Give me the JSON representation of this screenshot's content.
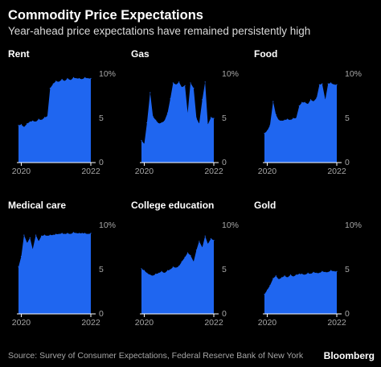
{
  "header": {
    "title": "Commodity Price Expectations",
    "subtitle": "Year-ahead price expectations have remained persistently high"
  },
  "footer": {
    "source": "Source: Survey of Consumer Expectations, Federal Reserve Bank of New York",
    "brand": "Bloomberg"
  },
  "colors": {
    "area": "#1f66f0",
    "background": "#000000",
    "text": "#ffffff",
    "muted": "#a6a6a6",
    "axis": "#ffffff"
  },
  "chart_data": [
    {
      "type": "area",
      "title": "Rent",
      "xlabel": "",
      "ylabel": "",
      "x_ticks": [
        "2020",
        "2022"
      ],
      "y_ticks": [
        "10%",
        "5",
        "0"
      ],
      "ylim": [
        0,
        10
      ],
      "xlim": [
        2019.92,
        2022
      ],
      "grid": false,
      "x": [
        2019.92,
        2020.0,
        2020.08,
        2020.17,
        2020.25,
        2020.33,
        2020.42,
        2020.5,
        2020.58,
        2020.67,
        2020.75,
        2020.83,
        2020.92,
        2021.0,
        2021.08,
        2021.17,
        2021.25,
        2021.33,
        2021.42,
        2021.5,
        2021.58,
        2021.67,
        2021.75,
        2021.83,
        2021.92,
        2022.0
      ],
      "values": [
        4.2,
        4.3,
        4.0,
        4.4,
        4.6,
        4.7,
        4.6,
        4.9,
        4.8,
        5.1,
        5.2,
        8.4,
        8.9,
        9.2,
        9.1,
        9.4,
        9.2,
        9.5,
        9.3,
        9.6,
        9.5,
        9.5,
        9.4,
        9.6,
        9.5,
        9.5
      ]
    },
    {
      "type": "area",
      "title": "Gas",
      "xlabel": "",
      "ylabel": "",
      "x_ticks": [
        "2020",
        "2022"
      ],
      "y_ticks": [
        "10%",
        "5",
        "0"
      ],
      "ylim": [
        0,
        10
      ],
      "xlim": [
        2019.92,
        2022
      ],
      "grid": false,
      "x": [
        2019.92,
        2020.0,
        2020.08,
        2020.17,
        2020.25,
        2020.33,
        2020.42,
        2020.5,
        2020.58,
        2020.67,
        2020.75,
        2020.83,
        2020.92,
        2021.0,
        2021.08,
        2021.17,
        2021.25,
        2021.33,
        2021.42,
        2021.5,
        2021.58,
        2021.67,
        2021.75,
        2021.83,
        2021.92,
        2022.0
      ],
      "values": [
        2.5,
        2.1,
        4.5,
        7.9,
        5.2,
        4.8,
        4.4,
        4.5,
        4.7,
        5.6,
        7.2,
        9.0,
        8.8,
        9.1,
        8.5,
        8.7,
        5.6,
        9.0,
        8.4,
        5.0,
        4.4,
        7.1,
        9.1,
        4.3,
        5.1,
        5.0
      ]
    },
    {
      "type": "area",
      "title": "Food",
      "xlabel": "",
      "ylabel": "",
      "x_ticks": [
        "2020",
        "2022"
      ],
      "y_ticks": [
        "10%",
        "5",
        "0"
      ],
      "ylim": [
        0,
        10
      ],
      "xlim": [
        2019.92,
        2022
      ],
      "grid": false,
      "x": [
        2019.92,
        2020.0,
        2020.08,
        2020.17,
        2020.25,
        2020.33,
        2020.42,
        2020.5,
        2020.58,
        2020.67,
        2020.75,
        2020.83,
        2020.92,
        2021.0,
        2021.08,
        2021.17,
        2021.25,
        2021.33,
        2021.42,
        2021.5,
        2021.58,
        2021.67,
        2021.75,
        2021.83,
        2021.92,
        2022.0
      ],
      "values": [
        3.3,
        3.6,
        4.2,
        6.9,
        5.4,
        4.8,
        4.7,
        4.8,
        4.9,
        4.8,
        5.0,
        5.0,
        6.4,
        6.8,
        6.8,
        6.6,
        7.1,
        6.9,
        7.3,
        8.8,
        8.9,
        7.1,
        8.9,
        9.0,
        8.8,
        8.8
      ]
    },
    {
      "type": "area",
      "title": "Medical care",
      "xlabel": "",
      "ylabel": "",
      "x_ticks": [
        "2020",
        "2022"
      ],
      "y_ticks": [
        "10%",
        "5",
        "0"
      ],
      "ylim": [
        0,
        10
      ],
      "xlim": [
        2019.92,
        2022
      ],
      "grid": false,
      "x": [
        2019.92,
        2020.0,
        2020.08,
        2020.17,
        2020.25,
        2020.33,
        2020.42,
        2020.5,
        2020.58,
        2020.67,
        2020.75,
        2020.83,
        2020.92,
        2021.0,
        2021.08,
        2021.17,
        2021.25,
        2021.33,
        2021.42,
        2021.5,
        2021.58,
        2021.67,
        2021.75,
        2021.83,
        2021.92,
        2022.0
      ],
      "values": [
        5.3,
        6.5,
        8.9,
        8.0,
        8.6,
        7.3,
        8.9,
        8.2,
        8.8,
        8.9,
        8.8,
        8.9,
        8.9,
        9.0,
        9.0,
        9.1,
        9.0,
        9.1,
        9.0,
        9.2,
        9.1,
        9.1,
        9.1,
        9.1,
        9.0,
        9.1
      ]
    },
    {
      "type": "area",
      "title": "College education",
      "xlabel": "",
      "ylabel": "",
      "x_ticks": [
        "2020",
        "2022"
      ],
      "y_ticks": [
        "10%",
        "5",
        "0"
      ],
      "ylim": [
        0,
        10
      ],
      "xlim": [
        2019.92,
        2022
      ],
      "grid": false,
      "x": [
        2019.92,
        2020.0,
        2020.08,
        2020.17,
        2020.25,
        2020.33,
        2020.42,
        2020.5,
        2020.58,
        2020.67,
        2020.75,
        2020.83,
        2020.92,
        2021.0,
        2021.08,
        2021.17,
        2021.25,
        2021.33,
        2021.42,
        2021.5,
        2021.58,
        2021.67,
        2021.75,
        2021.83,
        2021.92,
        2022.0
      ],
      "values": [
        5.1,
        4.9,
        4.6,
        4.4,
        4.3,
        4.5,
        4.6,
        4.8,
        4.6,
        4.9,
        5.0,
        5.3,
        5.2,
        5.4,
        5.9,
        6.4,
        6.9,
        6.6,
        5.9,
        7.2,
        8.2,
        7.5,
        8.8,
        7.9,
        8.5,
        8.3
      ]
    },
    {
      "type": "area",
      "title": "Gold",
      "xlabel": "",
      "ylabel": "",
      "x_ticks": [
        "2020",
        "2022"
      ],
      "y_ticks": [
        "10%",
        "5",
        "0"
      ],
      "ylim": [
        0,
        10
      ],
      "xlim": [
        2019.92,
        2022
      ],
      "grid": false,
      "x": [
        2019.92,
        2020.0,
        2020.08,
        2020.17,
        2020.25,
        2020.33,
        2020.42,
        2020.5,
        2020.58,
        2020.67,
        2020.75,
        2020.83,
        2020.92,
        2021.0,
        2021.08,
        2021.17,
        2021.25,
        2021.33,
        2021.42,
        2021.5,
        2021.58,
        2021.67,
        2021.75,
        2021.83,
        2021.92,
        2022.0
      ],
      "values": [
        2.2,
        2.7,
        3.2,
        4.0,
        4.3,
        3.9,
        4.1,
        4.3,
        4.1,
        4.4,
        4.2,
        4.4,
        4.5,
        4.5,
        4.4,
        4.6,
        4.5,
        4.7,
        4.6,
        4.6,
        4.8,
        4.7,
        4.7,
        4.9,
        4.8,
        4.8
      ]
    }
  ]
}
